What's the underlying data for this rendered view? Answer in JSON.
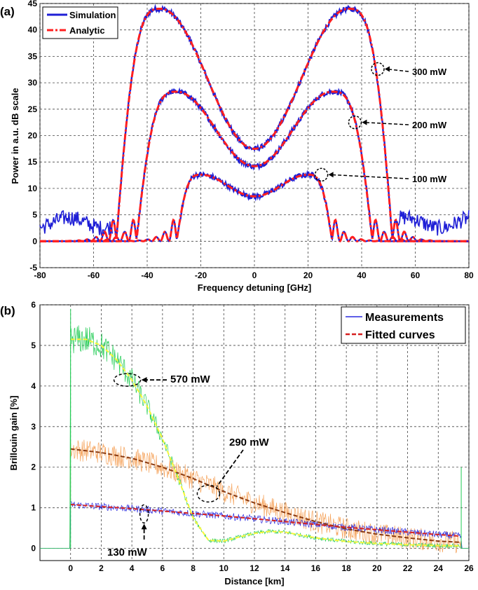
{
  "chart_data": [
    {
      "panel_label": "(a)",
      "type": "line",
      "xlabel": "Frequency detuning  [GHz]",
      "ylabel": "Power in a.u. dB scale",
      "xlim": [
        -80,
        80
      ],
      "ylim": [
        -5,
        45
      ],
      "xticks": [
        -80,
        -60,
        -40,
        -20,
        0,
        20,
        40,
        60,
        80
      ],
      "yticks": [
        -5,
        0,
        5,
        10,
        15,
        20,
        25,
        30,
        35,
        40,
        45
      ],
      "grid": true,
      "legend": {
        "position": "top-left",
        "entries": [
          "Simulation",
          "Analytic"
        ]
      },
      "colors": {
        "simulation": "#1f1fd6",
        "analytic": "#ff1f1f"
      },
      "series": [
        {
          "name": "300 mW",
          "edge": 51.5,
          "center": 17.5,
          "peak": 44,
          "peak_at": 35
        },
        {
          "name": "200 mW",
          "edge": 44,
          "center": 14.2,
          "peak": 28.3,
          "peak_at": 29
        },
        {
          "name": "100 mW",
          "edge": 29,
          "center": 8.5,
          "peak": 12.6,
          "peak_at": 20
        }
      ],
      "annotations": [
        {
          "text": "300 mW",
          "x": 46,
          "y": 32.6
        },
        {
          "text": "200 mW",
          "x": 37.5,
          "y": 22.5
        },
        {
          "text": "100 mW",
          "x": 25,
          "y": 12.6
        }
      ]
    },
    {
      "panel_label": "(b)",
      "type": "line",
      "xlabel": "Distance  [km]",
      "ylabel": "Brillouin gain  [%]",
      "xlim": [
        -2,
        26
      ],
      "ylim": [
        -0.3,
        6
      ],
      "xticks": [
        0,
        2,
        4,
        6,
        8,
        10,
        12,
        14,
        16,
        18,
        20,
        22,
        24,
        26
      ],
      "yticks": [
        0,
        1,
        2,
        3,
        4,
        5,
        6
      ],
      "grid": true,
      "legend": {
        "position": "top-right",
        "entries": [
          "Measurements",
          "Fitted curves"
        ]
      },
      "colors": {
        "measurements": "#2a2ae0",
        "fit": "#d62020",
        "green": "#22cc55",
        "orange": "#f5a25a"
      },
      "series": [
        {
          "name": "570 mW",
          "x": [
            0,
            1,
            2,
            3,
            4,
            5,
            6,
            7,
            8,
            9,
            10,
            11,
            12,
            13,
            14,
            15,
            16,
            18,
            20,
            22,
            24,
            25.5
          ],
          "values": [
            5.15,
            5.15,
            5.0,
            4.65,
            4.15,
            3.5,
            2.7,
            1.75,
            0.75,
            0.2,
            0.18,
            0.28,
            0.37,
            0.42,
            0.4,
            0.33,
            0.26,
            0.17,
            0.12,
            0.09,
            0.07,
            0.06
          ]
        },
        {
          "name": "290 mW",
          "x": [
            0,
            2,
            4,
            6,
            8,
            10,
            12,
            14,
            16,
            18,
            20,
            22,
            24,
            25.5
          ],
          "values": [
            2.45,
            2.36,
            2.22,
            2.0,
            1.72,
            1.4,
            1.12,
            0.88,
            0.66,
            0.48,
            0.35,
            0.26,
            0.18,
            0.15
          ]
        },
        {
          "name": "130 mW",
          "x": [
            0,
            2,
            4,
            6,
            8,
            10,
            12,
            14,
            16,
            18,
            20,
            22,
            24,
            25.5
          ],
          "values": [
            1.08,
            1.03,
            0.98,
            0.92,
            0.86,
            0.8,
            0.73,
            0.66,
            0.59,
            0.52,
            0.46,
            0.4,
            0.34,
            0.3
          ]
        }
      ],
      "annotations": [
        {
          "text": "570 mW",
          "x": 3.7,
          "y": 4.15
        },
        {
          "text": "290 mW",
          "x": 9,
          "y": 0.95
        },
        {
          "text": "130 mW",
          "x": 4.8,
          "y": 0.85
        }
      ]
    }
  ]
}
